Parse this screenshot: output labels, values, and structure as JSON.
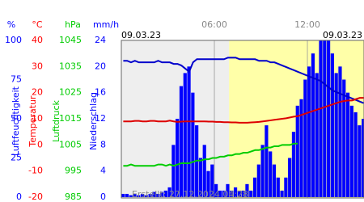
{
  "chart_data": {
    "type": "weather",
    "x": [
      0,
      0.25,
      0.5,
      0.75,
      1,
      1.25,
      1.5,
      1.75,
      2,
      2.25,
      2.5,
      2.75,
      3,
      3.25,
      3.5,
      3.75,
      4,
      4.25,
      4.5,
      4.75,
      5,
      5.25,
      5.5,
      5.75,
      6,
      6.25,
      6.5,
      6.75,
      7,
      7.25,
      7.5,
      7.75,
      8,
      8.25,
      8.5,
      8.75,
      9,
      9.25,
      9.5,
      9.75,
      10,
      10.25,
      10.5,
      10.75,
      11,
      11.25,
      11.5,
      11.75,
      12,
      12.25,
      12.5,
      12.75,
      13,
      13.25,
      13.5,
      13.75,
      14,
      14.25,
      14.5,
      14.75,
      15,
      15.25,
      15.5
    ],
    "xlim": [
      0,
      15.65
    ],
    "xticks": [
      {
        "value": 6,
        "label": "06:00"
      },
      {
        "value": 12,
        "label": "12:00"
      }
    ],
    "day_start": 6.95,
    "date_left": "09.03.23",
    "date_right": "09.03.23",
    "footer": "Erstellt: 27.12.2024 04:28",
    "axes": [
      {
        "unit": "%",
        "title": "Luftfeuchtigkeit",
        "color": "#0000ff",
        "lim": [
          0,
          100
        ],
        "ticks": [
          100,
          75,
          50,
          25,
          0
        ]
      },
      {
        "unit": "°C",
        "title": "Temperatur",
        "color": "#ff0000",
        "lim": [
          -20,
          40
        ],
        "ticks": [
          40,
          30,
          20,
          10,
          0,
          -10,
          -20
        ]
      },
      {
        "unit": "hPa",
        "title": "Luftdruck",
        "color": "#00cc00",
        "lim": [
          985,
          1045
        ],
        "ticks": [
          1045,
          1035,
          1025,
          1015,
          1005,
          995,
          985
        ]
      },
      {
        "unit": "mm/h",
        "title": "Niederschlag",
        "color": "#0000ff",
        "lim": [
          0,
          24
        ],
        "ticks": [
          24,
          20,
          16,
          12,
          8,
          4,
          0
        ]
      }
    ],
    "series": [
      {
        "name": "Niederschlag",
        "kind": "bar",
        "axis": 3,
        "color": "#0000ff",
        "values": [
          0.5,
          0.5,
          0.3,
          0.5,
          0.3,
          0.5,
          0.3,
          0.5,
          0.8,
          0.5,
          0.8,
          1,
          1.5,
          8,
          12,
          17,
          19,
          20,
          16,
          11,
          6,
          8,
          4,
          5,
          2,
          1,
          1,
          2,
          1,
          1.5,
          1,
          1,
          2,
          1,
          3,
          5,
          8,
          11,
          7,
          5,
          3,
          1,
          3,
          6,
          10,
          14,
          15,
          18,
          20,
          22,
          19,
          24,
          25,
          25,
          22,
          19,
          20,
          18,
          16,
          14,
          13,
          11,
          12
        ]
      },
      {
        "name": "Luftfeuchtigkeit",
        "kind": "line",
        "axis": 0,
        "color": "#0000cc",
        "values": [
          87,
          87,
          86,
          87,
          86,
          86,
          86,
          86,
          86,
          87,
          86,
          86,
          86,
          85,
          85,
          84,
          82,
          80,
          86,
          88,
          88,
          88,
          88,
          88,
          88,
          88,
          88,
          89,
          89,
          89,
          88,
          88,
          88,
          88,
          88,
          87,
          87,
          87,
          86,
          86,
          85,
          84,
          83,
          82,
          81,
          80,
          79,
          78,
          77,
          76,
          75,
          74,
          72,
          70,
          68,
          67,
          66,
          65,
          64,
          63,
          62,
          61,
          60
        ]
      },
      {
        "name": "Temperatur",
        "kind": "line",
        "axis": 1,
        "color": "#dd0000",
        "values": [
          9,
          9,
          9,
          9.2,
          9.2,
          9,
          9,
          9.2,
          9.2,
          9,
          9,
          9,
          9.3,
          9,
          8.8,
          8.9,
          9,
          9,
          9,
          9,
          9,
          9,
          8.9,
          8.9,
          8.8,
          8.8,
          8.7,
          8.7,
          8.6,
          8.6,
          8.5,
          8.5,
          8.5,
          8.6,
          8.7,
          8.8,
          9,
          9.2,
          9.4,
          9.6,
          9.8,
          10,
          10.2,
          10.5,
          10.8,
          11,
          11.5,
          12,
          12.5,
          13,
          13.5,
          14,
          14.5,
          15,
          15.5,
          16,
          16.5,
          16.8,
          17,
          17,
          17.5,
          18,
          18
        ]
      },
      {
        "name": "Luftdruck",
        "kind": "line",
        "axis": 2,
        "color": "#00cc00",
        "values": [
          997,
          997,
          997.5,
          997,
          997,
          997,
          997,
          997,
          997,
          997.5,
          997.5,
          997,
          997.5,
          997,
          997.5,
          998,
          998,
          998,
          998.5,
          999,
          999,
          999.5,
          999.5,
          1000,
          1000,
          1000.5,
          1000.5,
          1001,
          1001,
          1001.5,
          1001.5,
          1002,
          1002,
          1002.5,
          1003,
          1003,
          1003.5,
          1004,
          1004,
          1004.5,
          1004.5,
          1005,
          1005,
          1005,
          1005.5,
          1005.5,
          null,
          null,
          null,
          null,
          null,
          null,
          null,
          null,
          null,
          null,
          null,
          null,
          null,
          null,
          null,
          null,
          null
        ]
      }
    ]
  }
}
